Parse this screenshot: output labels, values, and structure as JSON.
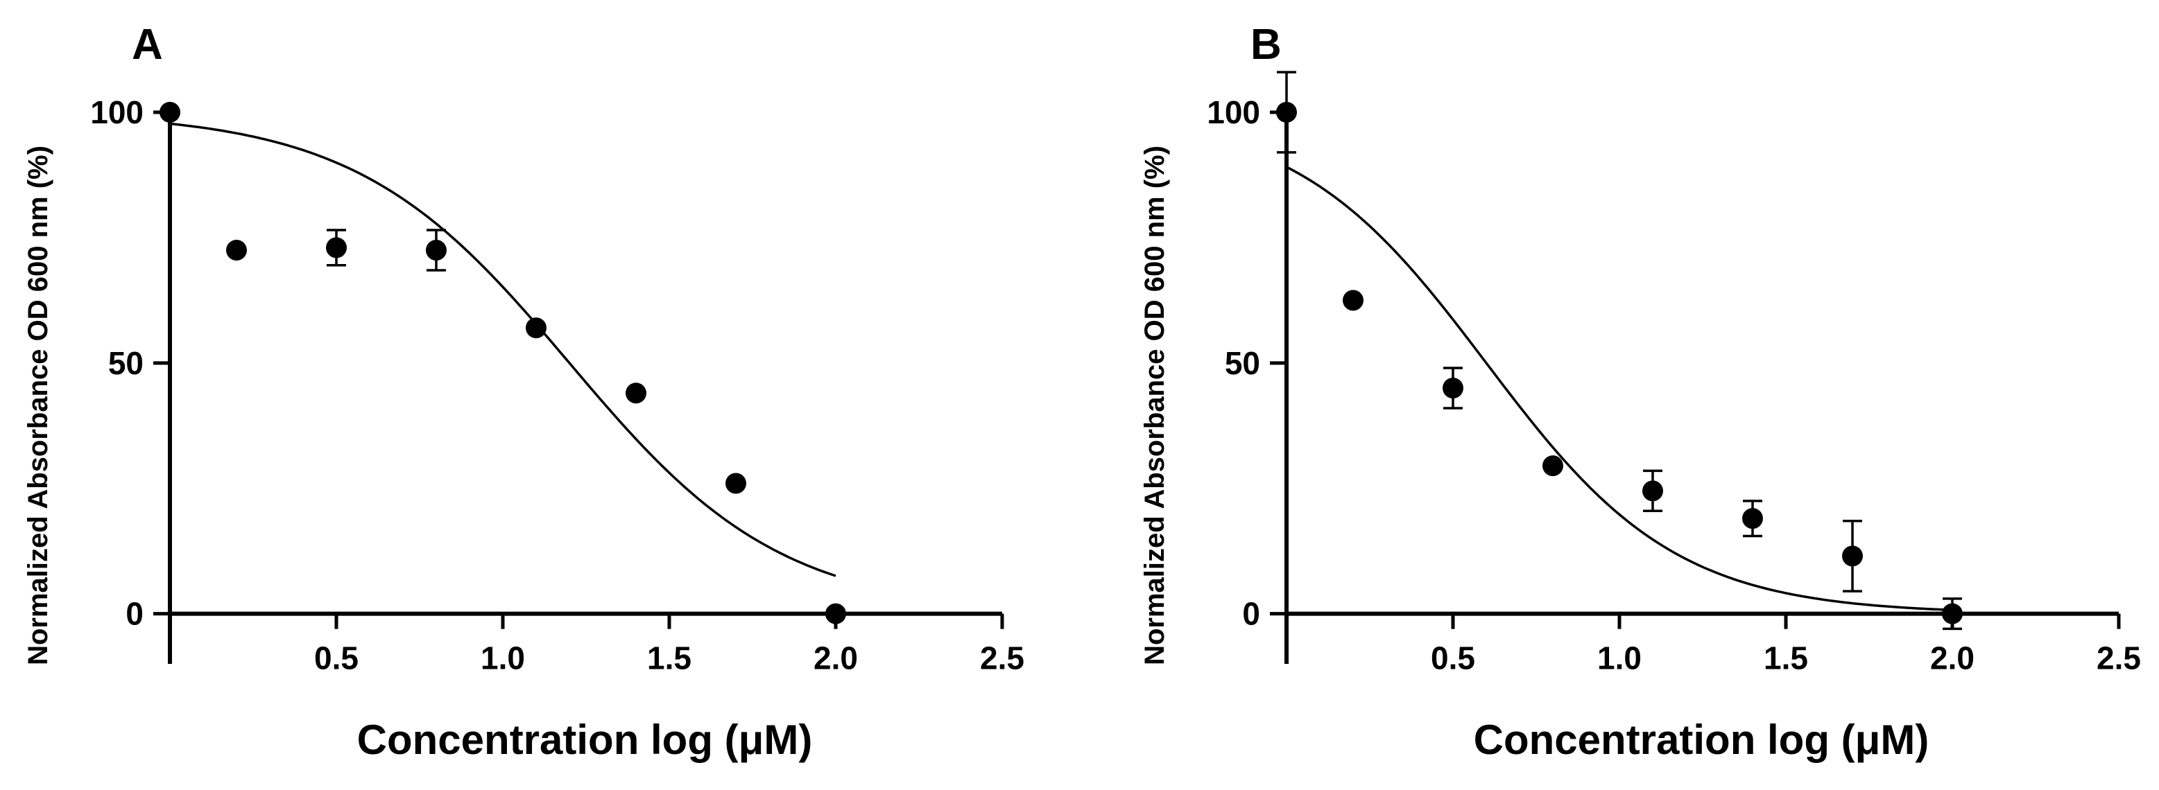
{
  "chart_data": [
    {
      "type": "scatter",
      "panel": "A",
      "xlabel": "Concentration log (μM)",
      "ylabel": "Normalized Absorbance OD 600 nm (%)",
      "xlim": [
        0,
        2.5
      ],
      "ylim": [
        -10,
        100
      ],
      "xticks": [
        0.5,
        1.0,
        1.5,
        2.0,
        2.5
      ],
      "xtick_labels": [
        "0.5",
        "1.0",
        "1.5",
        "2.0",
        "2.5"
      ],
      "yticks": [
        0,
        50,
        100
      ],
      "ytick_labels": [
        "0",
        "50",
        "100"
      ],
      "points": [
        {
          "x": 0.0,
          "y": 100,
          "err": 0
        },
        {
          "x": 0.2,
          "y": 72.5,
          "err": 0
        },
        {
          "x": 0.5,
          "y": 73,
          "err": 3.5
        },
        {
          "x": 0.8,
          "y": 72.5,
          "err": 4
        },
        {
          "x": 1.1,
          "y": 57,
          "err": 0
        },
        {
          "x": 1.4,
          "y": 44,
          "err": 0
        },
        {
          "x": 1.7,
          "y": 26,
          "err": 0
        },
        {
          "x": 2.0,
          "y": 0,
          "err": 0
        }
      ],
      "fit": {
        "model": "logistic",
        "top": 100,
        "bottom": 0,
        "x50": 1.2,
        "slope": 1.36,
        "x_range": [
          0.0,
          2.0
        ]
      }
    },
    {
      "type": "scatter",
      "panel": "B",
      "xlabel": "Concentration log (μM)",
      "ylabel": "Normalized Absorbance OD 600 nm (%)",
      "xlim": [
        0,
        2.5
      ],
      "ylim": [
        -10,
        100
      ],
      "xticks": [
        0.5,
        1.0,
        1.5,
        2.0,
        2.5
      ],
      "xtick_labels": [
        "0.5",
        "1.0",
        "1.5",
        "2.0",
        "2.5"
      ],
      "yticks": [
        0,
        50,
        100
      ],
      "ytick_labels": [
        "0",
        "50",
        "100"
      ],
      "points": [
        {
          "x": 0.0,
          "y": 100,
          "err": 8
        },
        {
          "x": 0.2,
          "y": 62.5,
          "err": 0
        },
        {
          "x": 0.5,
          "y": 45,
          "err": 4
        },
        {
          "x": 0.8,
          "y": 29.5,
          "err": 0
        },
        {
          "x": 1.1,
          "y": 24.5,
          "err": 4
        },
        {
          "x": 1.4,
          "y": 19,
          "err": 3.5
        },
        {
          "x": 1.7,
          "y": 11.5,
          "err": 7
        },
        {
          "x": 2.0,
          "y": 0,
          "err": 3
        }
      ],
      "fit": {
        "model": "logistic",
        "top": 100,
        "bottom": 0,
        "x50": 0.6,
        "slope": 1.52,
        "x_range": [
          0.0,
          2.0
        ]
      }
    }
  ]
}
